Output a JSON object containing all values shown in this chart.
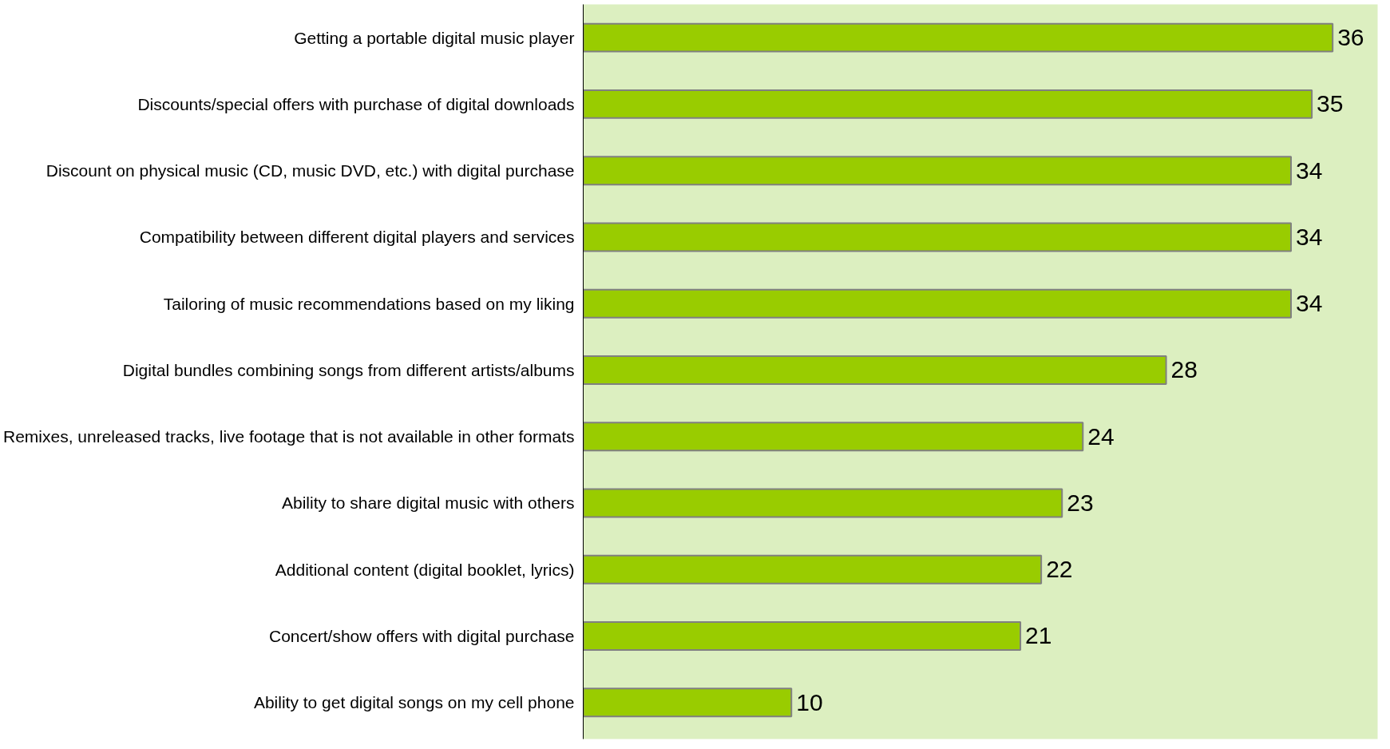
{
  "chart_data": {
    "type": "bar",
    "orientation": "horizontal",
    "categories": [
      "Getting a portable digital music player",
      "Discounts/special offers with purchase of digital downloads",
      "Discount on physical music (CD, music DVD, etc.) with digital purchase",
      "Compatibility between different digital players and services",
      "Tailoring of music recommendations based on my liking",
      "Digital bundles combining songs from different artists/albums",
      "Remixes, unreleased tracks, live footage that is not available in other formats",
      "Ability to share digital music with others",
      "Additional content (digital booklet, lyrics)",
      "Concert/show offers with digital purchase",
      "Ability to get digital songs on my cell phone"
    ],
    "values": [
      36,
      35,
      34,
      34,
      34,
      28,
      24,
      23,
      22,
      21,
      10
    ],
    "color": "#99cc00",
    "data_labels": true,
    "tick_labels": "y"
  }
}
